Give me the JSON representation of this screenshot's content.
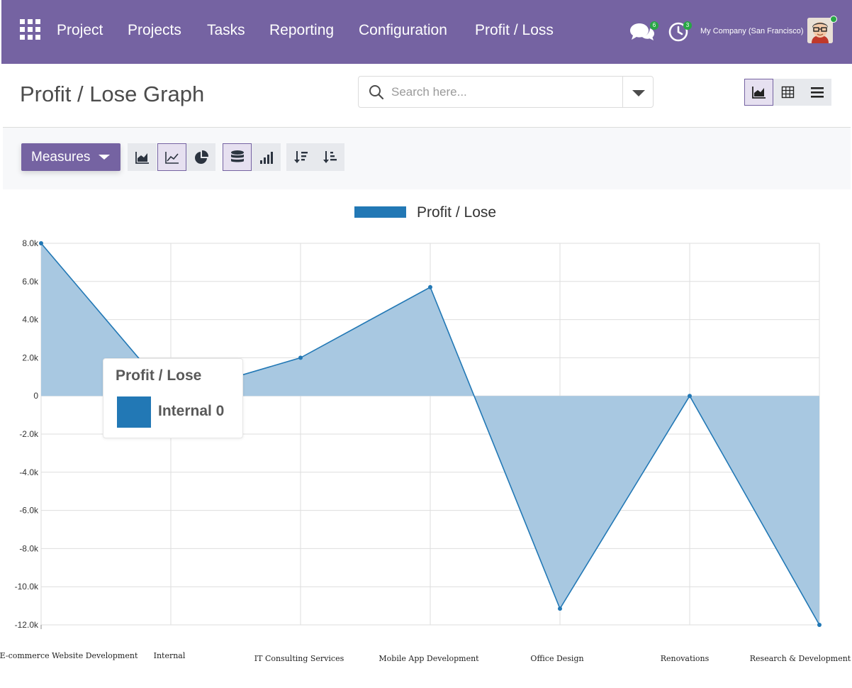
{
  "topbar": {
    "nav": [
      "Project",
      "Projects",
      "Tasks",
      "Reporting",
      "Configuration",
      "Profit / Loss"
    ],
    "messages_badge": "6",
    "activities_badge": "3",
    "company": "My Company (San Francisco)"
  },
  "control": {
    "title": "Profit / Lose Graph",
    "search_placeholder": "Search here...",
    "measures_label": "Measures"
  },
  "colors": {
    "brand": "#7563a2",
    "series": "#2278b5",
    "fill": "#a8c8e1"
  },
  "chart_data": {
    "type": "area",
    "legend": "Profit / Lose",
    "legend_position": "top",
    "grid": true,
    "categories": [
      "E-commerce Website Development",
      "Internal",
      "IT Consulting Services",
      "Mobile App Development",
      "Office Design",
      "Renovations",
      "Research & Development"
    ],
    "series": [
      {
        "name": "Profit / Lose",
        "values": [
          8000,
          0,
          2000,
          5700,
          -11150,
          0,
          -12000
        ]
      }
    ],
    "y_ticks": [
      8000,
      6000,
      4000,
      2000,
      0,
      -2000,
      -4000,
      -6000,
      -8000,
      -10000,
      -12000
    ],
    "y_tick_labels": [
      "8.0k",
      "6.0k",
      "4.0k",
      "2.0k",
      "0",
      "-2.0k",
      "-4.0k",
      "-6.0k",
      "-8.0k",
      "-10.0k",
      "-12.0k"
    ],
    "ylim": [
      -12000,
      8000
    ],
    "tooltip": {
      "title": "Profit / Lose",
      "value": "Internal 0"
    }
  }
}
